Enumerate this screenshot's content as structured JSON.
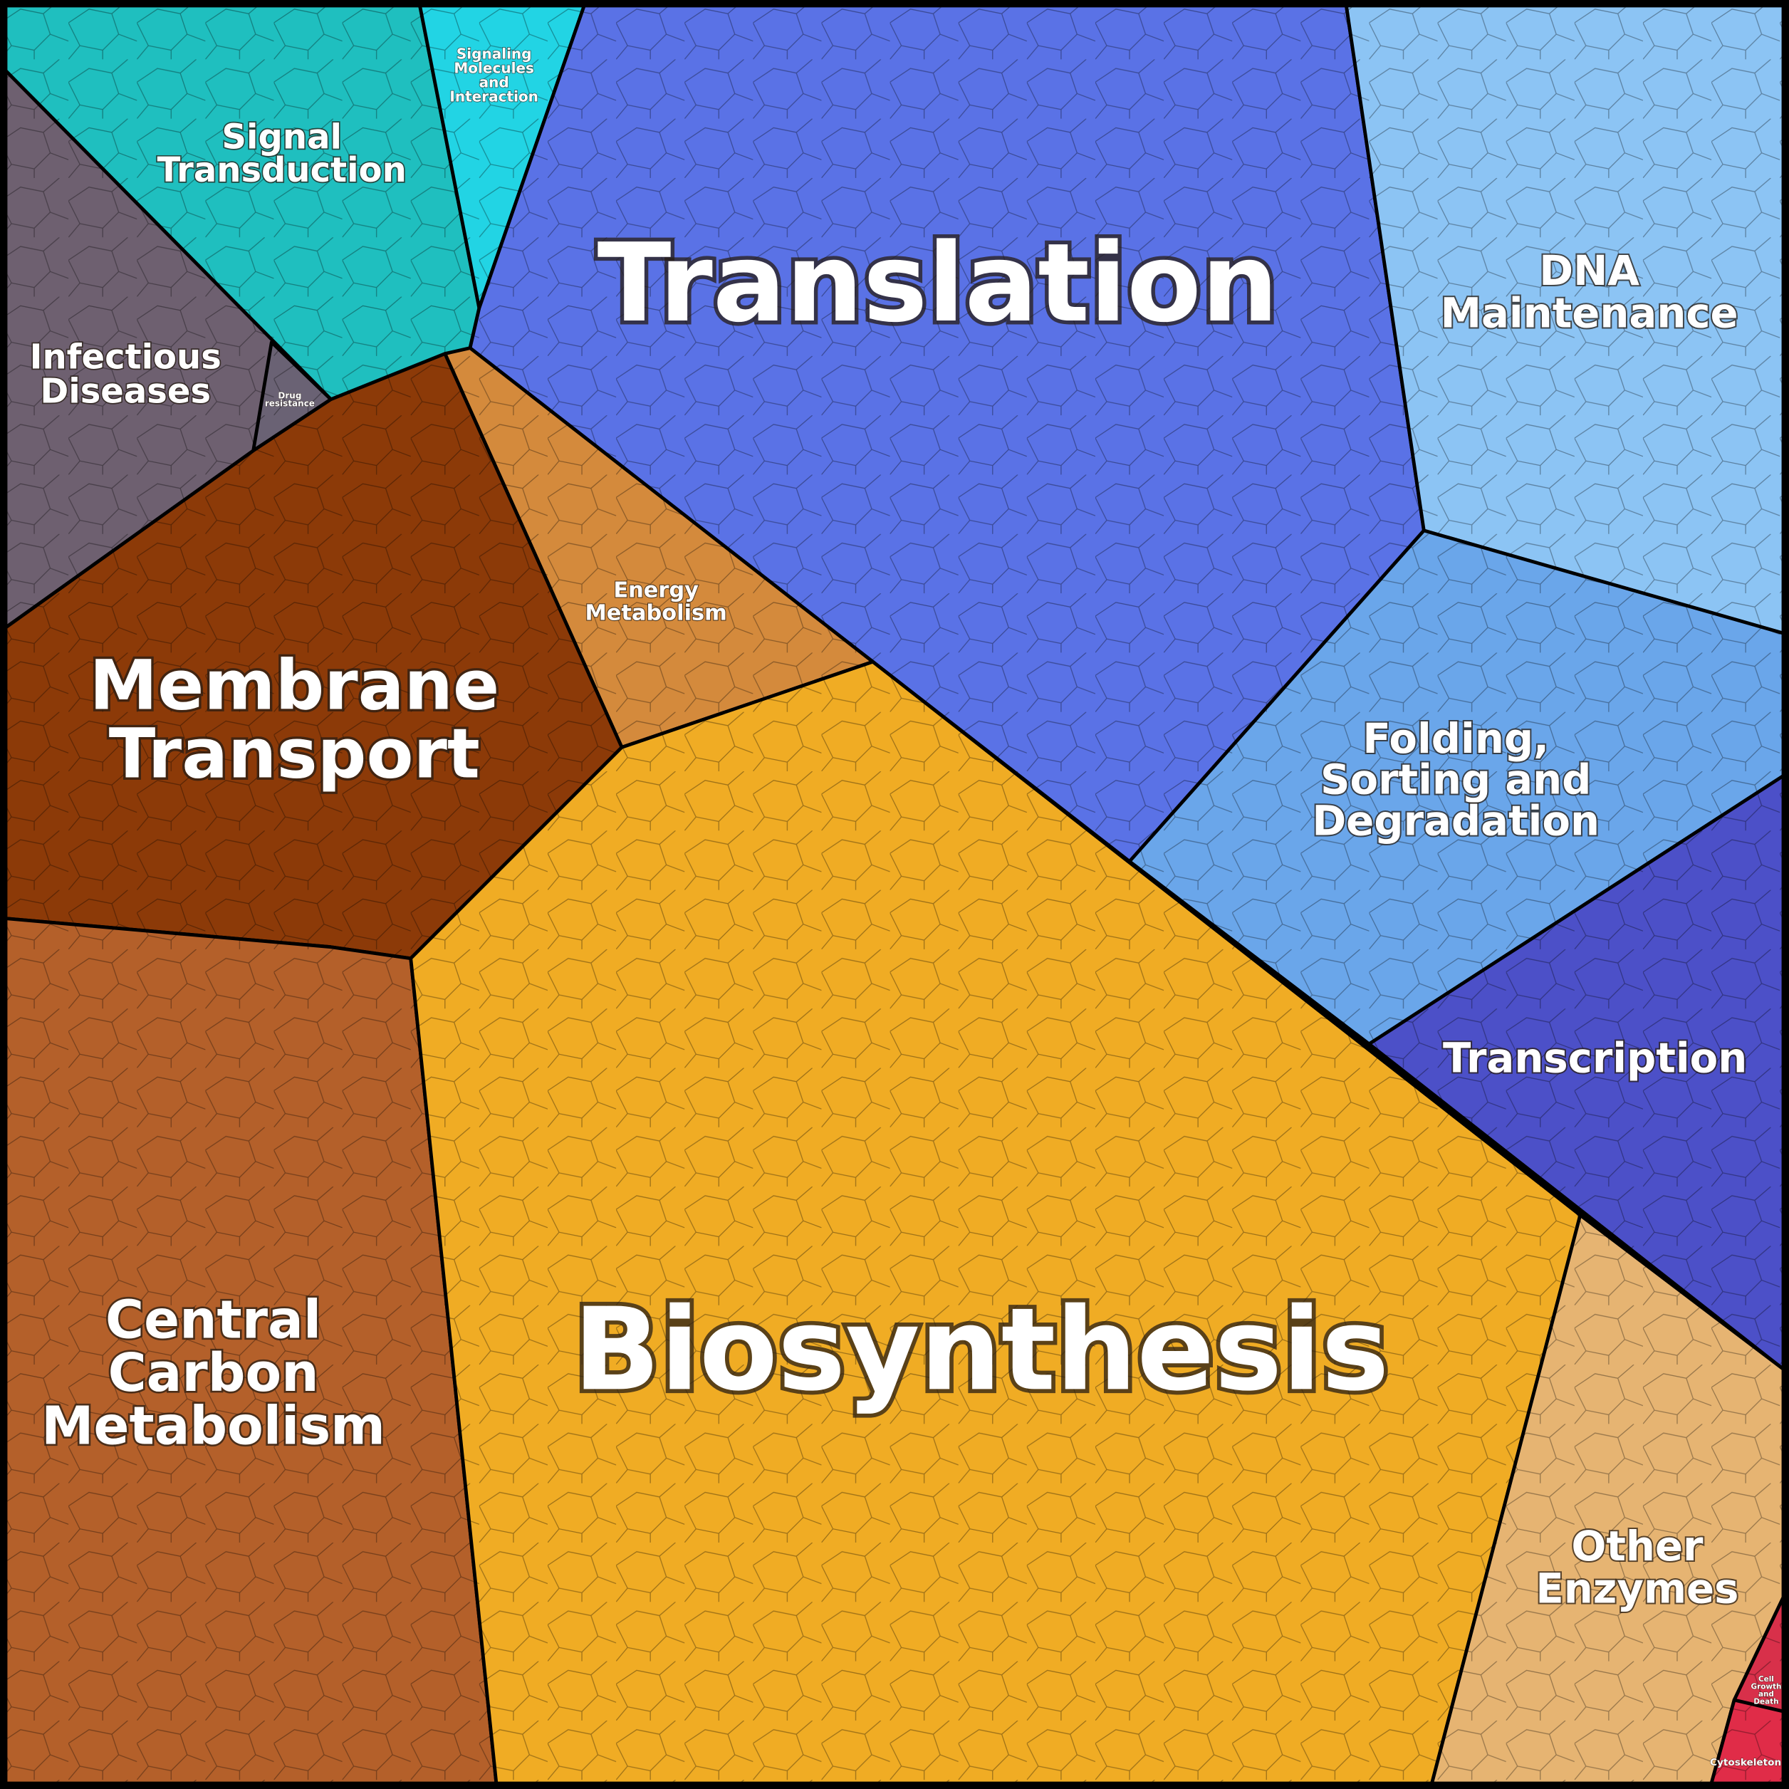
{
  "regions": [
    {
      "label_lines": [
        "Signal",
        "Transduction"
      ]
    },
    {
      "label_lines": [
        "Signaling",
        "Molecules",
        "and",
        "Interaction"
      ]
    },
    {
      "label_lines": [
        "Translation"
      ]
    },
    {
      "label_lines": [
        "DNA",
        "Maintenance"
      ]
    },
    {
      "label_lines": [
        "Infectious",
        "Diseases"
      ]
    },
    {
      "label_lines": [
        "Drug",
        "resistance"
      ]
    },
    {
      "label_lines": [
        "Energy",
        "Metabolism"
      ]
    },
    {
      "label_lines": [
        "Membrane",
        "Transport"
      ]
    },
    {
      "label_lines": [
        "Folding,",
        "Sorting and",
        "Degradation"
      ]
    },
    {
      "label_lines": [
        "Transcription"
      ]
    },
    {
      "label_lines": [
        "Central",
        "Carbon",
        "Metabolism"
      ]
    },
    {
      "label_lines": [
        "Biosynthesis"
      ]
    },
    {
      "label_lines": [
        "Other",
        "Enzymes"
      ]
    },
    {
      "label_lines": [
        "Cell",
        "Growth",
        "and",
        "Death"
      ]
    },
    {
      "label_lines": [
        "Cytoskeleton"
      ]
    }
  ]
}
